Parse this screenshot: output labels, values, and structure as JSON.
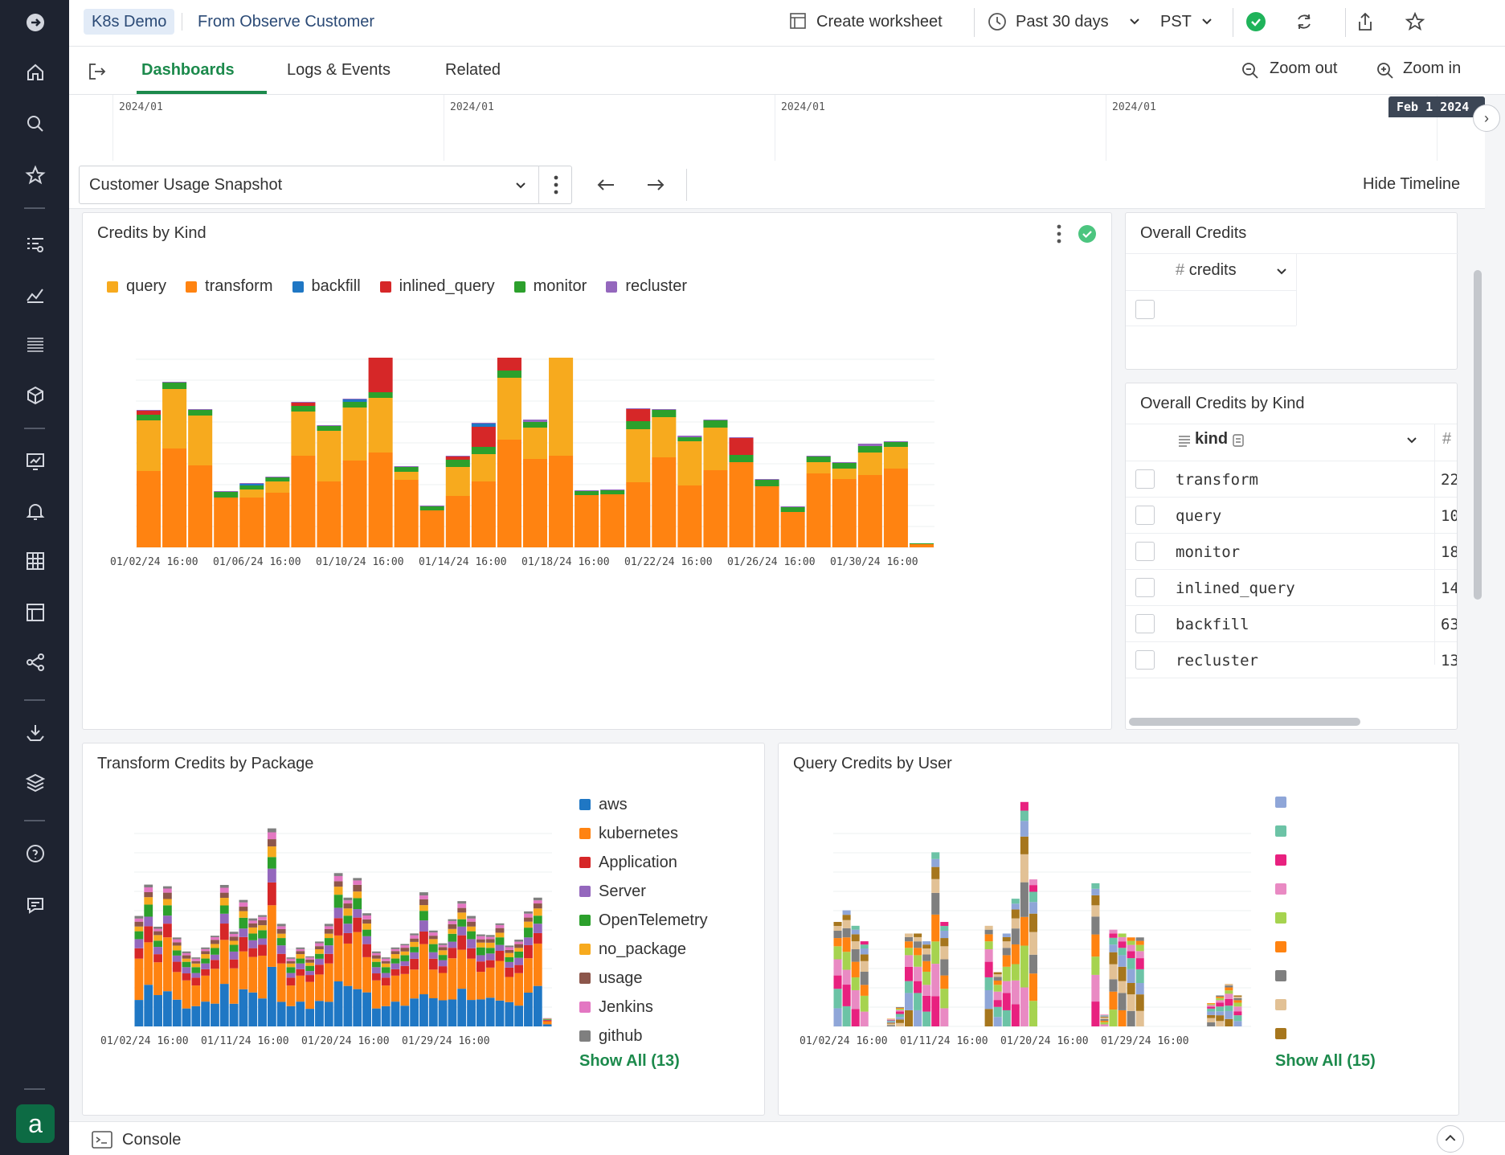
{
  "header": {
    "tag": "K8s Demo",
    "source": "From Observe Customer",
    "create_worksheet": "Create worksheet",
    "time_range": "Past 30 days",
    "timezone": "PST",
    "status_color": "#1fb35a"
  },
  "tabs": [
    {
      "label": "Dashboards",
      "active": true
    },
    {
      "label": "Logs & Events",
      "active": false
    },
    {
      "label": "Related",
      "active": false
    }
  ],
  "zoom": {
    "out": "Zoom out",
    "in": "Zoom in"
  },
  "timeline": {
    "labels": [
      "2024/01",
      "2024/01",
      "2024/01",
      "2024/01"
    ],
    "badge": "Feb 1 2024"
  },
  "dashboard": {
    "selector": "Customer Usage Snapshot",
    "hide_timeline": "Hide Timeline"
  },
  "credits_by_kind": {
    "title": "Credits by Kind",
    "legend": [
      {
        "name": "query",
        "color": "#f7aa1e"
      },
      {
        "name": "transform",
        "color": "#ff8311"
      },
      {
        "name": "backfill",
        "color": "#1f77c4"
      },
      {
        "name": "inlined_query",
        "color": "#d62728"
      },
      {
        "name": "monitor",
        "color": "#2ca02c"
      },
      {
        "name": "recluster",
        "color": "#9467bd"
      }
    ]
  },
  "overall_credits": {
    "title": "Overall Credits",
    "column": "credits"
  },
  "overall_by_kind": {
    "title": "Overall Credits by Kind",
    "column": "kind",
    "column2": "#",
    "rows": [
      {
        "kind": "transform",
        "value": "22"
      },
      {
        "kind": "query",
        "value": "10"
      },
      {
        "kind": "monitor",
        "value": "18"
      },
      {
        "kind": "inlined_query",
        "value": "14"
      },
      {
        "kind": "backfill",
        "value": "63"
      },
      {
        "kind": "recluster",
        "value": "13"
      }
    ]
  },
  "transform_by_package": {
    "title": "Transform Credits by Package",
    "legend": [
      {
        "name": "aws",
        "color": "#1f77c4"
      },
      {
        "name": "kubernetes",
        "color": "#ff8311"
      },
      {
        "name": "Application",
        "color": "#d62728"
      },
      {
        "name": "Server",
        "color": "#9467bd"
      },
      {
        "name": "OpenTelemetry",
        "color": "#2ca02c"
      },
      {
        "name": "no_package",
        "color": "#f7aa1e"
      },
      {
        "name": "usage",
        "color": "#8c564b"
      },
      {
        "name": "Jenkins",
        "color": "#e377c2"
      },
      {
        "name": "github",
        "color": "#7f7f7f"
      }
    ],
    "show_all": "Show All (13)"
  },
  "query_by_user": {
    "title": "Query Credits by User",
    "legend_colors": [
      "#8fa6d8",
      "#6cc3a6",
      "#e8217f",
      "#e98ac3",
      "#a6d34f",
      "#ff8311",
      "#7f7f7f",
      "#e2c195",
      "#a6761d"
    ],
    "show_all": "Show All (15)"
  },
  "console": {
    "label": "Console"
  },
  "chart_data": [
    {
      "type": "bar",
      "title": "Credits by Kind",
      "stacked": true,
      "x_tick_labels": [
        "01/02/24 16:00",
        "01/06/24 16:00",
        "01/10/24 16:00",
        "01/14/24 16:00",
        "01/18/24 16:00",
        "01/22/24 16:00",
        "01/26/24 16:00",
        "01/30/24 16:00"
      ],
      "series_order": [
        "transform",
        "query",
        "monitor",
        "inlined_query",
        "backfill",
        "recluster"
      ],
      "colors": {
        "transform": "#ff8311",
        "query": "#f7aa1e",
        "monitor": "#2ca02c",
        "inlined_query": "#d62728",
        "backfill": "#1f77c4",
        "recluster": "#9467bd"
      },
      "bars": [
        [
          95,
          63,
          7,
          5,
          0,
          1
        ],
        [
          123,
          74,
          8,
          0,
          0,
          1
        ],
        [
          102,
          62,
          7,
          0,
          0,
          1
        ],
        [
          62,
          0,
          7,
          0,
          0,
          1
        ],
        [
          62,
          10,
          5,
          0,
          2,
          1
        ],
        [
          68,
          14,
          5,
          0,
          0,
          1
        ],
        [
          114,
          55,
          7,
          4,
          0,
          1
        ],
        [
          82,
          63,
          6,
          0,
          0,
          1
        ],
        [
          108,
          66,
          7,
          0,
          3,
          1
        ],
        [
          118,
          68,
          7,
          45,
          45,
          2
        ],
        [
          84,
          10,
          6,
          0,
          0,
          1
        ],
        [
          46,
          0,
          5,
          0,
          0,
          1
        ],
        [
          64,
          36,
          9,
          4,
          0,
          1
        ],
        [
          82,
          34,
          9,
          25,
          4,
          1
        ],
        [
          134,
          77,
          9,
          21,
          0,
          1
        ],
        [
          110,
          39,
          7,
          0,
          0,
          3
        ],
        [
          114,
          145,
          7,
          0,
          5,
          1
        ],
        [
          65,
          0,
          5,
          0,
          0,
          1
        ],
        [
          66,
          0,
          5,
          0,
          0,
          1
        ],
        [
          81,
          66,
          10,
          15,
          0,
          1
        ],
        [
          112,
          50,
          9,
          0,
          0,
          1
        ],
        [
          77,
          55,
          5,
          0,
          0,
          2
        ],
        [
          96,
          53,
          9,
          0,
          0,
          1
        ],
        [
          106,
          0,
          9,
          21,
          0,
          1
        ],
        [
          76,
          0,
          8,
          0,
          0,
          1
        ],
        [
          44,
          0,
          6,
          0,
          0,
          1
        ],
        [
          92,
          14,
          7,
          0,
          0,
          1
        ],
        [
          85,
          13,
          7,
          0,
          0,
          1
        ],
        [
          90,
          28,
          8,
          0,
          0,
          3
        ],
        [
          98,
          27,
          6,
          0,
          0,
          1
        ],
        [
          4,
          0,
          1,
          0,
          0,
          0
        ]
      ]
    },
    {
      "type": "bar",
      "title": "Transform Credits by Package",
      "stacked": true,
      "x_tick_labels": [
        "01/02/24 16:00",
        "01/11/24 16:00",
        "01/20/24 16:00",
        "01/29/24 16:00"
      ],
      "series": [
        "aws",
        "kubernetes",
        "Application",
        "Server",
        "OpenTelemetry",
        "no_package",
        "usage",
        "Jenkins",
        "github"
      ]
    },
    {
      "type": "bar",
      "title": "Query Credits by User",
      "stacked": true,
      "x_tick_labels": [
        "01/02/24 16:00",
        "01/11/24 16:00",
        "01/20/24 16:00",
        "01/29/24 16:00"
      ]
    }
  ]
}
